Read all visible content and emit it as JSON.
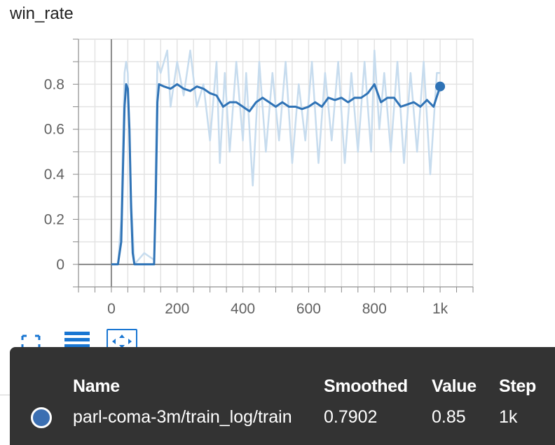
{
  "panel": {
    "title": "win_rate"
  },
  "colors": {
    "smoothed": "#2f73b6",
    "raw": "#c7dcee",
    "axis": "#8a8a8a",
    "grid": "#e3e3e3",
    "tooltip_bg": "#333333",
    "swatch": "#3b6fb2",
    "active": "#1976d2"
  },
  "toolbar": {
    "icons": [
      "fullscreen-icon",
      "list-icon",
      "fit-domain-icon"
    ]
  },
  "tooltip": {
    "headers": {
      "name": "Name",
      "smoothed": "Smoothed",
      "value": "Value",
      "step": "Step"
    },
    "row": {
      "name": "parl-coma-3m/train_log/train",
      "smoothed": "0.7902",
      "value": "0.85",
      "step": "1k"
    }
  },
  "chart_data": {
    "type": "line",
    "title": "win_rate",
    "xlabel": "",
    "ylabel": "",
    "xlim": [
      -100,
      1100
    ],
    "ylim": [
      -0.1,
      1.0
    ],
    "x_ticks": [
      0,
      200,
      400,
      600,
      800,
      1000
    ],
    "x_tick_labels": [
      "0",
      "200",
      "400",
      "600",
      "800",
      "1k"
    ],
    "y_ticks": [
      0,
      0.2,
      0.4,
      0.6,
      0.8
    ],
    "y_tick_labels": [
      "0",
      "0.2",
      "0.4",
      "0.6",
      "0.8"
    ],
    "grid": true,
    "series": [
      {
        "role": "smoothed",
        "points": [
          [
            0,
            0
          ],
          [
            20,
            0
          ],
          [
            30,
            0.1
          ],
          [
            35,
            0.4
          ],
          [
            40,
            0.7
          ],
          [
            45,
            0.8
          ],
          [
            50,
            0.78
          ],
          [
            55,
            0.6
          ],
          [
            60,
            0.25
          ],
          [
            65,
            0.05
          ],
          [
            70,
            0
          ],
          [
            100,
            0
          ],
          [
            130,
            0
          ],
          [
            135,
            0.3
          ],
          [
            140,
            0.72
          ],
          [
            145,
            0.8
          ],
          [
            160,
            0.79
          ],
          [
            180,
            0.78
          ],
          [
            200,
            0.8
          ],
          [
            220,
            0.78
          ],
          [
            240,
            0.77
          ],
          [
            260,
            0.79
          ],
          [
            280,
            0.78
          ],
          [
            300,
            0.76
          ],
          [
            320,
            0.75
          ],
          [
            340,
            0.7
          ],
          [
            360,
            0.72
          ],
          [
            380,
            0.72
          ],
          [
            400,
            0.7
          ],
          [
            420,
            0.68
          ],
          [
            440,
            0.72
          ],
          [
            460,
            0.74
          ],
          [
            480,
            0.72
          ],
          [
            500,
            0.7
          ],
          [
            520,
            0.72
          ],
          [
            540,
            0.7
          ],
          [
            560,
            0.7
          ],
          [
            580,
            0.69
          ],
          [
            600,
            0.7
          ],
          [
            620,
            0.72
          ],
          [
            640,
            0.7
          ],
          [
            660,
            0.74
          ],
          [
            680,
            0.73
          ],
          [
            700,
            0.74
          ],
          [
            720,
            0.72
          ],
          [
            740,
            0.74
          ],
          [
            760,
            0.74
          ],
          [
            780,
            0.76
          ],
          [
            800,
            0.8
          ],
          [
            820,
            0.72
          ],
          [
            840,
            0.74
          ],
          [
            860,
            0.74
          ],
          [
            880,
            0.7
          ],
          [
            900,
            0.71
          ],
          [
            920,
            0.72
          ],
          [
            940,
            0.7
          ],
          [
            960,
            0.73
          ],
          [
            980,
            0.7
          ],
          [
            1000,
            0.79
          ]
        ]
      },
      {
        "role": "raw",
        "points": [
          [
            0,
            0
          ],
          [
            20,
            0
          ],
          [
            30,
            0.2
          ],
          [
            40,
            0.85
          ],
          [
            45,
            0.9
          ],
          [
            50,
            0.85
          ],
          [
            60,
            0.3
          ],
          [
            70,
            0
          ],
          [
            100,
            0.05
          ],
          [
            130,
            0.02
          ],
          [
            140,
            0.9
          ],
          [
            150,
            0.85
          ],
          [
            170,
            0.95
          ],
          [
            180,
            0.7
          ],
          [
            200,
            0.9
          ],
          [
            220,
            0.75
          ],
          [
            240,
            0.95
          ],
          [
            260,
            0.7
          ],
          [
            280,
            0.8
          ],
          [
            300,
            0.55
          ],
          [
            320,
            0.9
          ],
          [
            330,
            0.45
          ],
          [
            345,
            0.85
          ],
          [
            360,
            0.5
          ],
          [
            380,
            0.9
          ],
          [
            400,
            0.55
          ],
          [
            410,
            0.85
          ],
          [
            430,
            0.35
          ],
          [
            450,
            0.9
          ],
          [
            470,
            0.5
          ],
          [
            490,
            0.85
          ],
          [
            510,
            0.55
          ],
          [
            530,
            0.9
          ],
          [
            550,
            0.45
          ],
          [
            570,
            0.8
          ],
          [
            590,
            0.55
          ],
          [
            610,
            0.9
          ],
          [
            630,
            0.45
          ],
          [
            650,
            0.85
          ],
          [
            670,
            0.55
          ],
          [
            690,
            0.9
          ],
          [
            710,
            0.45
          ],
          [
            730,
            0.85
          ],
          [
            750,
            0.5
          ],
          [
            770,
            0.9
          ],
          [
            790,
            0.5
          ],
          [
            800,
            0.95
          ],
          [
            815,
            0.6
          ],
          [
            830,
            0.85
          ],
          [
            850,
            0.5
          ],
          [
            870,
            0.9
          ],
          [
            890,
            0.45
          ],
          [
            910,
            0.85
          ],
          [
            930,
            0.5
          ],
          [
            950,
            0.9
          ],
          [
            970,
            0.4
          ],
          [
            990,
            0.85
          ],
          [
            1000,
            0.85
          ]
        ]
      }
    ],
    "last_point": [
      1000,
      0.79
    ]
  }
}
